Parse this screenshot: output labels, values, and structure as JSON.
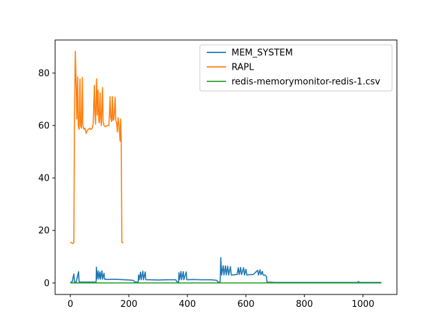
{
  "chart_data": {
    "type": "line",
    "title": "",
    "xlabel": "",
    "ylabel": "",
    "xlim": [
      -52,
      1116
    ],
    "ylim": [
      -4.4,
      92.6
    ],
    "xticks": [
      0,
      200,
      400,
      600,
      800,
      1000
    ],
    "yticks": [
      0,
      20,
      40,
      60,
      80
    ],
    "grid": false,
    "legend_position": "top-right",
    "series": [
      {
        "name": "MEM_SYSTEM",
        "color": "#1f77b4",
        "points": [
          [
            0,
            0.3
          ],
          [
            6,
            0.3
          ],
          [
            12,
            3.4
          ],
          [
            14,
            0.4
          ],
          [
            20,
            0.3
          ],
          [
            28,
            4.3
          ],
          [
            30,
            0.3
          ],
          [
            60,
            0.3
          ],
          [
            80,
            0.3
          ],
          [
            88,
            0.3
          ],
          [
            89,
            6.0
          ],
          [
            91,
            1.5
          ],
          [
            95,
            4.6
          ],
          [
            97,
            1.5
          ],
          [
            101,
            4.2
          ],
          [
            103,
            1.4
          ],
          [
            108,
            4.6
          ],
          [
            110,
            1.4
          ],
          [
            115,
            3.7
          ],
          [
            117,
            1.4
          ],
          [
            130,
            1.3
          ],
          [
            150,
            1.4
          ],
          [
            170,
            1.3
          ],
          [
            200,
            1.1
          ],
          [
            215,
            1.0
          ],
          [
            220,
            0.3
          ],
          [
            232,
            0.3
          ],
          [
            233,
            3.0
          ],
          [
            235,
            1.2
          ],
          [
            240,
            4.1
          ],
          [
            242,
            1.2
          ],
          [
            248,
            4.5
          ],
          [
            250,
            1.2
          ],
          [
            256,
            4.2
          ],
          [
            258,
            1.2
          ],
          [
            270,
            1.2
          ],
          [
            300,
            1.1
          ],
          [
            330,
            1.2
          ],
          [
            360,
            1.2
          ],
          [
            365,
            0.3
          ],
          [
            370,
            0.3
          ],
          [
            371,
            3.9
          ],
          [
            373,
            1.2
          ],
          [
            378,
            4.4
          ],
          [
            380,
            1.2
          ],
          [
            386,
            4.3
          ],
          [
            388,
            1.2
          ],
          [
            396,
            4.2
          ],
          [
            398,
            1.2
          ],
          [
            420,
            1.3
          ],
          [
            450,
            1.2
          ],
          [
            480,
            1.2
          ],
          [
            500,
            1.0
          ],
          [
            505,
            0.3
          ],
          [
            512,
            0.3
          ],
          [
            514,
            9.7
          ],
          [
            517,
            3.0
          ],
          [
            522,
            6.6
          ],
          [
            525,
            3.0
          ],
          [
            530,
            6.5
          ],
          [
            533,
            3.0
          ],
          [
            538,
            6.4
          ],
          [
            541,
            3.0
          ],
          [
            547,
            6.2
          ],
          [
            550,
            3.0
          ],
          [
            570,
            3.2
          ],
          [
            574,
            5.8
          ],
          [
            577,
            3.2
          ],
          [
            582,
            5.9
          ],
          [
            585,
            3.2
          ],
          [
            592,
            5.8
          ],
          [
            595,
            3.0
          ],
          [
            600,
            5.2
          ],
          [
            603,
            3.0
          ],
          [
            610,
            3.1
          ],
          [
            625,
            3.2
          ],
          [
            640,
            4.8
          ],
          [
            643,
            3.0
          ],
          [
            648,
            5.0
          ],
          [
            651,
            3.1
          ],
          [
            656,
            4.4
          ],
          [
            659,
            3.0
          ],
          [
            665,
            3.0
          ],
          [
            670,
            2.5
          ],
          [
            672,
            0.3
          ],
          [
            700,
            0.2
          ],
          [
            800,
            0.2
          ],
          [
            900,
            0.2
          ],
          [
            980,
            0.2
          ],
          [
            985,
            0.5
          ],
          [
            988,
            0.2
          ],
          [
            1000,
            0.2
          ],
          [
            1063,
            0.2
          ]
        ]
      },
      {
        "name": "RAPL",
        "color": "#ff7f0e",
        "points": [
          [
            0,
            15.6
          ],
          [
            4,
            15.3
          ],
          [
            8,
            15.0
          ],
          [
            12,
            15.3
          ],
          [
            14,
            60.0
          ],
          [
            16,
            80.0
          ],
          [
            17,
            88.3
          ],
          [
            20,
            75.0
          ],
          [
            22,
            62.5
          ],
          [
            25,
            78.5
          ],
          [
            27,
            60.0
          ],
          [
            30,
            58.5
          ],
          [
            33,
            77.8
          ],
          [
            35,
            60.0
          ],
          [
            38,
            59.0
          ],
          [
            41,
            78.4
          ],
          [
            43,
            60.0
          ],
          [
            46,
            58.6
          ],
          [
            50,
            59.0
          ],
          [
            54,
            57.0
          ],
          [
            58,
            58.2
          ],
          [
            62,
            58.5
          ],
          [
            66,
            59.0
          ],
          [
            70,
            58.5
          ],
          [
            74,
            58.8
          ],
          [
            78,
            60.5
          ],
          [
            82,
            75.4
          ],
          [
            84,
            65.0
          ],
          [
            86,
            60.5
          ],
          [
            90,
            77.8
          ],
          [
            92,
            64.0
          ],
          [
            95,
            73.5
          ],
          [
            97,
            62.0
          ],
          [
            99,
            61.0
          ],
          [
            102,
            72.5
          ],
          [
            104,
            62.5
          ],
          [
            106,
            60.0
          ],
          [
            110,
            74.5
          ],
          [
            112,
            61.5
          ],
          [
            115,
            60.0
          ],
          [
            120,
            59.5
          ],
          [
            126,
            60.0
          ],
          [
            132,
            60.0
          ],
          [
            136,
            71.0
          ],
          [
            138,
            63.0
          ],
          [
            141,
            61.5
          ],
          [
            144,
            71.0
          ],
          [
            146,
            62.0
          ],
          [
            149,
            62.5
          ],
          [
            153,
            70.8
          ],
          [
            155,
            62.0
          ],
          [
            158,
            61.0
          ],
          [
            161,
            57.5
          ],
          [
            163,
            63.0
          ],
          [
            166,
            60.5
          ],
          [
            168,
            57.5
          ],
          [
            170,
            54.0
          ],
          [
            172,
            62.5
          ],
          [
            174,
            53.0
          ],
          [
            176,
            15.6
          ],
          [
            178,
            15.3
          ],
          [
            180,
            15.6
          ]
        ]
      },
      {
        "name": "redis-memorymonitor-redis-1.csv",
        "color": "#2ca02c",
        "points": [
          [
            0,
            0.0
          ],
          [
            1063,
            0.0
          ]
        ]
      }
    ]
  }
}
